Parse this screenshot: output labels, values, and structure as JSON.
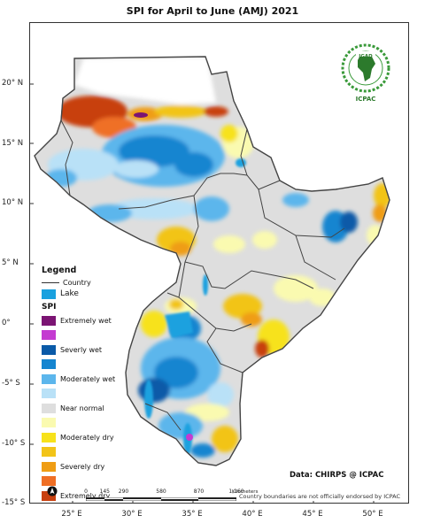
{
  "title": "SPI   for  April to June (AMJ) 2021",
  "lat_labels": [
    {
      "label": "20° N",
      "lat": 20
    },
    {
      "label": "15° N",
      "lat": 15
    },
    {
      "label": "10° N",
      "lat": 10
    },
    {
      "label": "5° N",
      "lat": 5
    },
    {
      "label": "0°",
      "lat": 0
    },
    {
      "label": "-5° S",
      "lat": -5
    },
    {
      "label": "-10° S",
      "lat": -10
    },
    {
      "label": "-15° S",
      "lat": -15
    }
  ],
  "lon_labels": [
    {
      "label": "25° E",
      "lon": 25
    },
    {
      "label": "30° E",
      "lon": 30
    },
    {
      "label": "35° E",
      "lon": 35
    },
    {
      "label": "40° E",
      "lon": 40
    },
    {
      "label": "45° E",
      "lon": 45
    },
    {
      "label": "50° E",
      "lon": 50
    }
  ],
  "legend": {
    "heading": "Legend",
    "country": "Country",
    "lake": "Lake",
    "spi_heading": "SPI",
    "classes": [
      {
        "label": "Extremely wet",
        "color": "#7b1473"
      },
      {
        "label": "",
        "color": "#c43bd1"
      },
      {
        "label": "Severly wet",
        "color": "#0a5aa8"
      },
      {
        "label": "",
        "color": "#1585d0"
      },
      {
        "label": "Moderately wet",
        "color": "#5cb6ec"
      },
      {
        "label": "",
        "color": "#b9e1f7"
      },
      {
        "label": "Near normal",
        "color": "#dedede"
      },
      {
        "label": "",
        "color": "#fafab0"
      },
      {
        "label": "Moderately dry",
        "color": "#f7e21b"
      },
      {
        "label": "",
        "color": "#f2c418"
      },
      {
        "label": "Severely dry",
        "color": "#ef9d14"
      },
      {
        "label": "",
        "color": "#ef6f25"
      },
      {
        "label": "Extremely dry",
        "color": "#c8400f"
      }
    ],
    "lake_color": "#1aa1df",
    "country_color": "#444444"
  },
  "credit": "Data: CHIRPS @ ICPAC",
  "disclaimer": "Country boundaries are not officially endorsed by ICPAC",
  "logo": {
    "top_text": "IGAD",
    "bottom_text": "ICPAC",
    "icon": "africa-map-icon"
  },
  "scale": {
    "labels": [
      "0",
      "145",
      "290",
      "580",
      "870",
      "1,160"
    ],
    "unit": "Kilometers",
    "positions": [
      0,
      0.125,
      0.25,
      0.5,
      0.75,
      1
    ]
  }
}
